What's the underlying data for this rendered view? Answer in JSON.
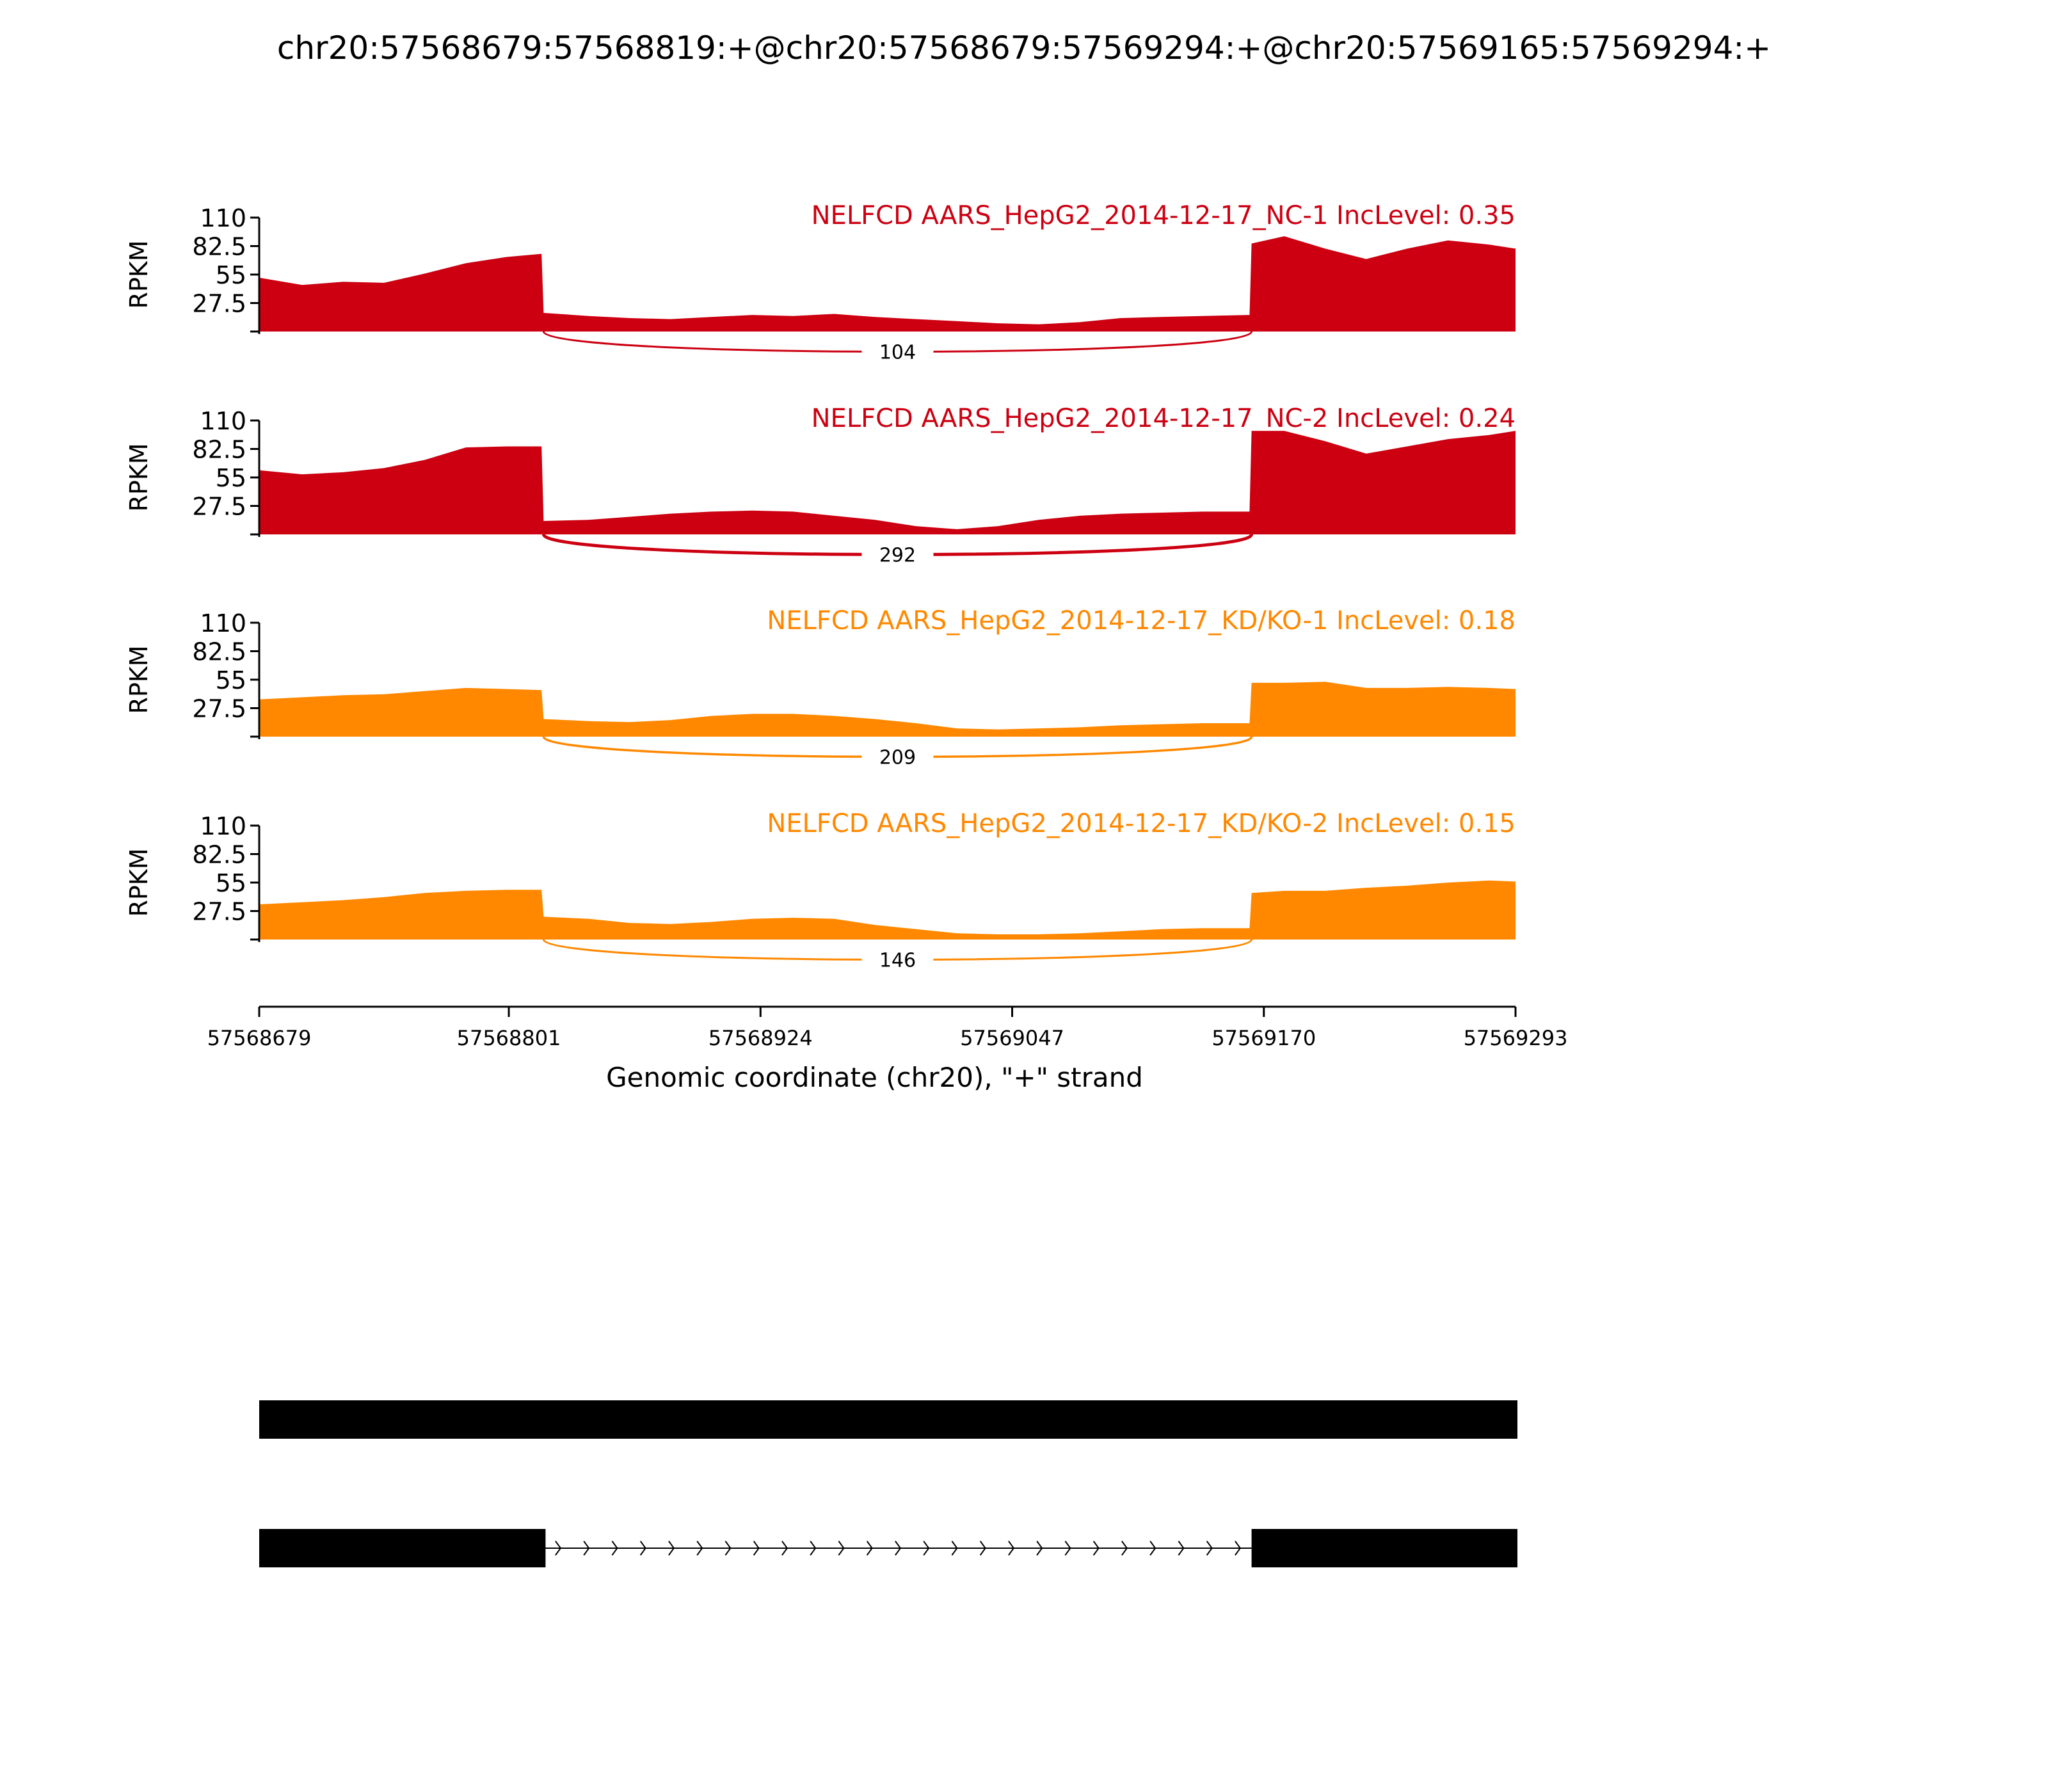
{
  "figure_title": "chr20:57568679:57568819:+@chr20:57568679:57569294:+@chr20:57569165:57569294:+",
  "colors": {
    "control": "#cc0011",
    "knockdown": "#ff8800",
    "axis": "#000000",
    "gene_model": "#000000"
  },
  "chart_data": {
    "type": "area",
    "title": "chr20:57568679:57568819:+@chr20:57568679:57569294:+@chr20:57569165:57569294:+",
    "xlabel": "Genomic coordinate (chr20), \"+\" strand",
    "ylabel": "RPKM",
    "xlim": [
      57568679,
      57569293
    ],
    "ylim": [
      0,
      110
    ],
    "x_ticks": [
      "57568679",
      "57568801",
      "57568924",
      "57569047",
      "57569170",
      "57569293"
    ],
    "y_ticks": [
      "27.5",
      "55",
      "82.5",
      "110"
    ],
    "x": [
      57568679,
      57568700,
      57568720,
      57568740,
      57568760,
      57568780,
      57568800,
      57568817,
      57568818,
      57568840,
      57568860,
      57568880,
      57568900,
      57568920,
      57568940,
      57568960,
      57568980,
      57569000,
      57569020,
      57569040,
      57569060,
      57569080,
      57569100,
      57569120,
      57569140,
      57569163,
      57569164,
      57569180,
      57569200,
      57569220,
      57569240,
      57569260,
      57569280,
      57569293
    ],
    "exon_bounds": [
      57568818,
      57569164
    ],
    "junction_label_x": 57568991,
    "series": [
      {
        "name": "NELFCD AARS_HepG2_2014-12-17_NC-1 IncLevel: 0.35",
        "group": "control",
        "junction_reads": 104,
        "values": [
          52,
          45,
          48,
          47,
          56,
          66,
          72,
          75,
          18,
          15,
          13,
          12,
          14,
          16,
          15,
          17,
          14,
          12,
          10,
          8,
          7,
          9,
          13,
          14,
          15,
          16,
          85,
          92,
          80,
          70,
          80,
          88,
          84,
          80
        ]
      },
      {
        "name": "NELFCD AARS_HepG2_2014-12-17_NC-2 IncLevel: 0.24",
        "group": "control",
        "junction_reads": 292,
        "values": [
          62,
          58,
          60,
          64,
          72,
          84,
          85,
          85,
          13,
          14,
          17,
          20,
          22,
          23,
          22,
          18,
          14,
          8,
          5,
          8,
          14,
          18,
          20,
          21,
          22,
          22,
          100,
          100,
          90,
          78,
          85,
          92,
          96,
          100
        ]
      },
      {
        "name": "NELFCD AARS_HepG2_2014-12-17_KD/KO-1 IncLevel: 0.18",
        "group": "knockdown",
        "junction_reads": 209,
        "values": [
          36,
          38,
          40,
          41,
          44,
          47,
          46,
          45,
          17,
          15,
          14,
          16,
          20,
          22,
          22,
          20,
          17,
          13,
          8,
          7,
          8,
          9,
          11,
          12,
          13,
          13,
          52,
          52,
          53,
          47,
          47,
          48,
          47,
          46
        ]
      },
      {
        "name": "NELFCD AARS_HepG2_2014-12-17_KD/KO-2 IncLevel: 0.15",
        "group": "knockdown",
        "junction_reads": 146,
        "values": [
          34,
          36,
          38,
          41,
          45,
          47,
          48,
          48,
          22,
          20,
          16,
          15,
          17,
          20,
          21,
          20,
          14,
          10,
          6,
          5,
          5,
          6,
          8,
          10,
          11,
          11,
          45,
          47,
          47,
          50,
          52,
          55,
          57,
          56
        ]
      }
    ],
    "gene_model": {
      "isoforms": [
        {
          "exons": [
            [
              57568679,
              57569293
            ]
          ]
        },
        {
          "exons": [
            [
              57568679,
              57568818
            ],
            [
              57569164,
              57569293
            ]
          ]
        }
      ]
    }
  }
}
